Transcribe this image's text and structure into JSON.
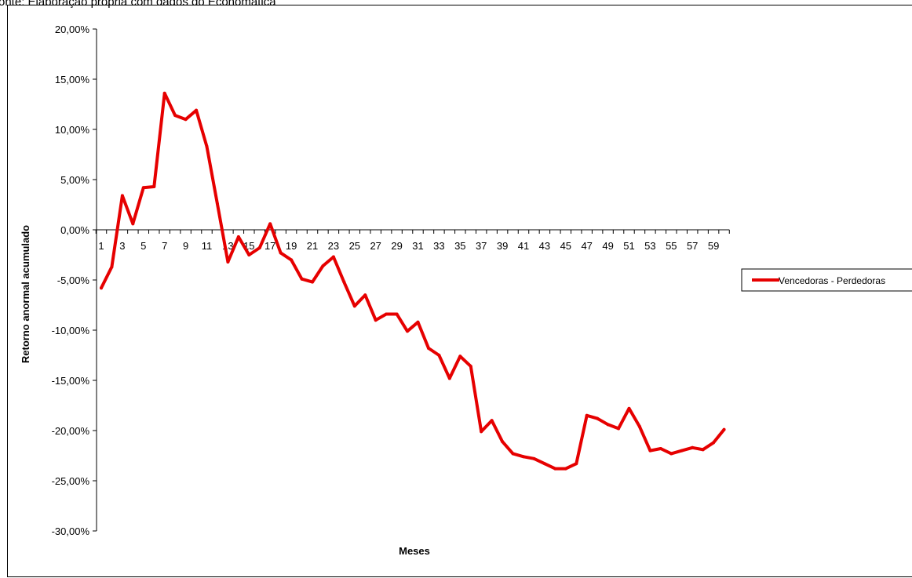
{
  "source_note": "onte: Elaboração própria com dados do Economática",
  "chart_data": {
    "type": "line",
    "xlabel": "Meses",
    "ylabel": "Retorno anormal acumulado",
    "ylim": [
      -30,
      20
    ],
    "y_ticks": [
      20,
      15,
      10,
      5,
      0,
      -5,
      -10,
      -15,
      -20,
      -25,
      -30
    ],
    "y_tick_labels": [
      "20,00%",
      "15,00%",
      "10,00%",
      "5,00%",
      "0,00%",
      "-5,00%",
      "-10,00%",
      "-15,00%",
      "-20,00%",
      "-25,00%",
      "-30,00%"
    ],
    "x": [
      1,
      2,
      3,
      4,
      5,
      6,
      7,
      8,
      9,
      10,
      11,
      12,
      13,
      14,
      15,
      16,
      17,
      18,
      19,
      20,
      21,
      22,
      23,
      24,
      25,
      26,
      27,
      28,
      29,
      30,
      31,
      32,
      33,
      34,
      35,
      36,
      37,
      38,
      39,
      40,
      41,
      42,
      43,
      44,
      45,
      46,
      47,
      48,
      49,
      50,
      51,
      52,
      53,
      54,
      55,
      56,
      57,
      58,
      59,
      60
    ],
    "x_tick_labels": [
      "1",
      "3",
      "5",
      "7",
      "9",
      "11",
      "13",
      "15",
      "17",
      "19",
      "21",
      "23",
      "25",
      "27",
      "29",
      "31",
      "33",
      "35",
      "37",
      "39",
      "41",
      "43",
      "45",
      "47",
      "49",
      "51",
      "53",
      "55",
      "57",
      "59"
    ],
    "legend_position": "right",
    "grid": false,
    "series": [
      {
        "name": "Vencedoras - Perdedoras",
        "color": "#e60000",
        "values": [
          -5.8,
          -3.7,
          3.4,
          0.6,
          4.2,
          4.3,
          13.6,
          11.4,
          11.0,
          11.9,
          8.3,
          2.6,
          -3.2,
          -0.7,
          -2.5,
          -1.8,
          0.6,
          -2.3,
          -3.0,
          -4.9,
          -5.2,
          -3.6,
          -2.7,
          -5.2,
          -7.6,
          -6.5,
          -9.0,
          -8.4,
          -8.4,
          -10.1,
          -9.2,
          -11.8,
          -12.5,
          -14.8,
          -12.6,
          -13.6,
          -20.1,
          -19.0,
          -21.1,
          -22.3,
          -22.6,
          -22.8,
          -23.3,
          -23.8,
          -23.8,
          -23.3,
          -18.5,
          -18.8,
          -19.4,
          -19.8,
          -17.8,
          -19.6,
          -22.0,
          -21.8,
          -22.3,
          -22.0,
          -21.7,
          -21.9,
          -21.2,
          -19.9
        ]
      }
    ]
  }
}
